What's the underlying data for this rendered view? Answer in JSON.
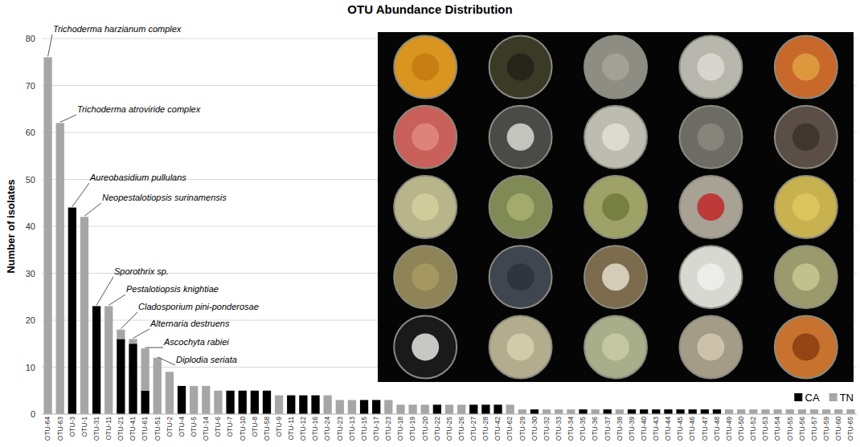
{
  "chart_data": {
    "type": "bar",
    "stacked": true,
    "title": "OTU Abundance Distribution",
    "y_label": "Number of isolates",
    "categories": [
      "OTU-64",
      "OTU-63",
      "OTU-3",
      "OTU-1",
      "OTU-31",
      "OTU-11",
      "OTU-21",
      "OTU-41",
      "OTU-61",
      "OTU-51",
      "OTU-2",
      "OTU-4",
      "OTU-5",
      "OTU-14",
      "OTU-6",
      "OTU-7",
      "OTU-10",
      "OTU-8",
      "OTU-58",
      "OTU-9",
      "OTU-11",
      "OTU-12",
      "OTU-16",
      "OTU-24",
      "OTU-23",
      "OTU-13",
      "OTU-15",
      "OTU-17",
      "OTU-23",
      "OTU-18",
      "OTU-19",
      "OTU-20",
      "OTU-22",
      "OTU-25",
      "OTU-26",
      "OTU-27",
      "OTU-28",
      "OTU-42",
      "OTU-62",
      "OTU-29",
      "OTU-30",
      "OTU-32",
      "OTU-33",
      "OTU-34",
      "OTU-35",
      "OTU-36",
      "OTU-37",
      "OTU-38",
      "OTU-39",
      "OTU-40",
      "OTU-43",
      "OTU-44",
      "OTU-45",
      "OTU-46",
      "OTU-47",
      "OTU-48",
      "OTU-49",
      "OTU-50",
      "OTU-52",
      "OTU-53",
      "OTU-54",
      "OTU-55",
      "OTU-56",
      "OTU-57",
      "OTU-59",
      "OTU-60",
      "OTU-65"
    ],
    "series": [
      {
        "name": "CA",
        "color": "#000000",
        "values": [
          0,
          0,
          44,
          0,
          23,
          0,
          16,
          15,
          5,
          0,
          0,
          6,
          0,
          0,
          0,
          5,
          5,
          5,
          5,
          0,
          4,
          4,
          4,
          0,
          0,
          0,
          3,
          3,
          0,
          0,
          0,
          0,
          2,
          0,
          0,
          2,
          2,
          2,
          0,
          0,
          1,
          0,
          0,
          0,
          1,
          0,
          1,
          0,
          1,
          1,
          1,
          1,
          1,
          1,
          1,
          1,
          0,
          0,
          0,
          0,
          0,
          0,
          0,
          0,
          0,
          0,
          0
        ]
      },
      {
        "name": "TN",
        "color": "#a6a6a6",
        "values": [
          76,
          62,
          0,
          42,
          0,
          23,
          2,
          1,
          9,
          12,
          9,
          0,
          6,
          6,
          5,
          0,
          0,
          0,
          0,
          4,
          0,
          0,
          0,
          4,
          3,
          3,
          0,
          0,
          3,
          2,
          2,
          2,
          0,
          2,
          2,
          0,
          0,
          0,
          2,
          1,
          0,
          1,
          1,
          1,
          0,
          1,
          0,
          1,
          0,
          0,
          0,
          0,
          0,
          0,
          0,
          0,
          1,
          1,
          1,
          1,
          1,
          1,
          1,
          1,
          1,
          1,
          1
        ]
      }
    ],
    "ylim": [
      0,
      80
    ],
    "yticks": [
      0,
      10,
      20,
      30,
      40,
      50,
      60,
      70,
      80
    ],
    "grid": true,
    "legend": "lower right",
    "annotations": [
      "Trichoderma harzianum complex",
      "Trichoderma atroviride complex",
      "Aureobasidium pullulans",
      "Neopestalotiopsis surinamensis",
      "Sporothrix sp.",
      "Pestalotiopsis knightiae",
      "Cladosporium pini-ponderosae",
      "Alternaria destruens",
      "Ascochyta rabiei",
      "Diplodia seriata"
    ]
  }
}
